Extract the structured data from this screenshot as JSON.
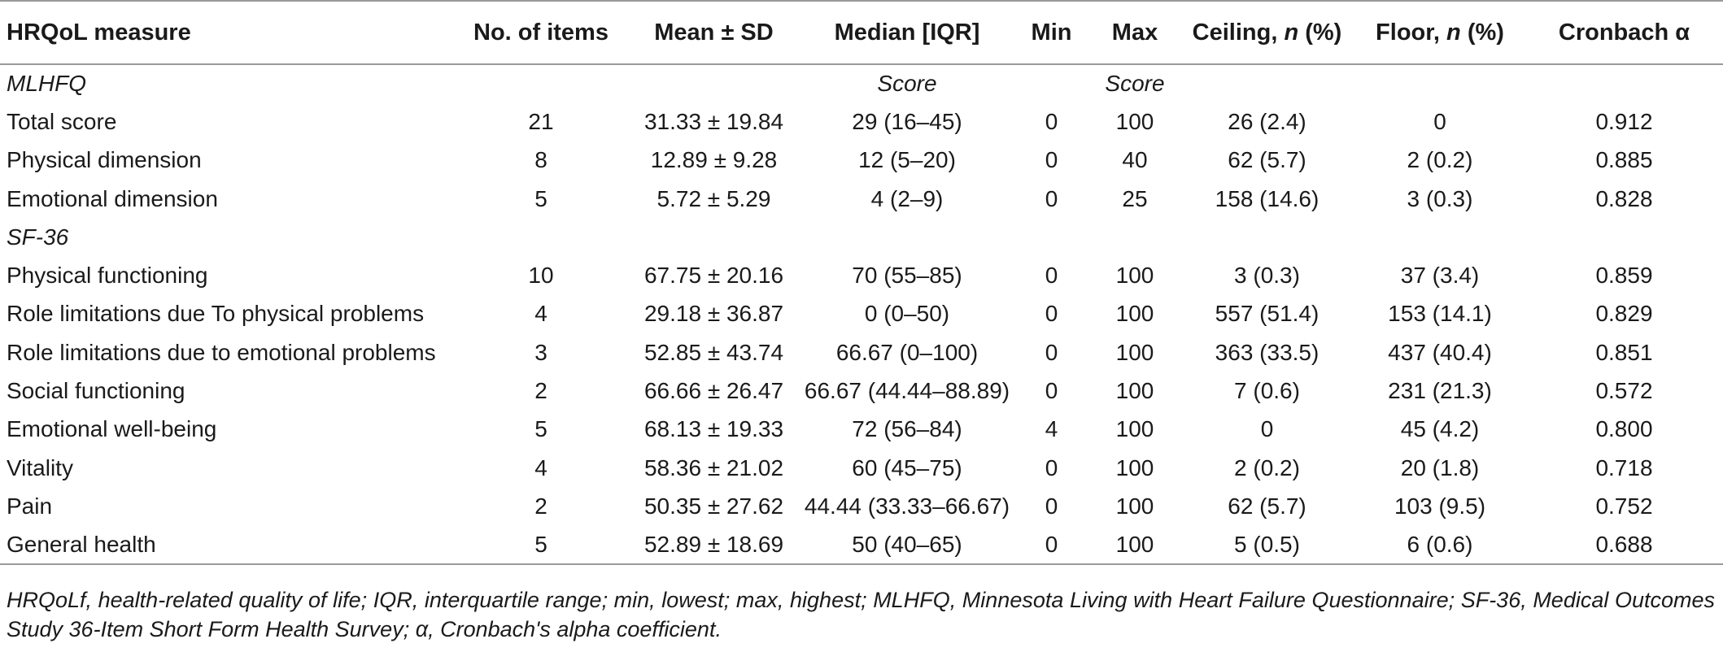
{
  "header": {
    "measure": "HRQoL measure",
    "items": "No. of items",
    "mean_sd": "Mean ± SD",
    "median": "Median [IQR]",
    "min": "Min",
    "max": "Max",
    "ceiling_a": "Ceiling, ",
    "ceiling_n": "n",
    "ceiling_b": " (%)",
    "floor_a": "Floor, ",
    "floor_n": "n",
    "floor_b": " (%)",
    "cronbach": "Cronbach α"
  },
  "sections": [
    {
      "name": "MLHFQ",
      "median_note": "Score",
      "max_note": "Score",
      "rows": [
        {
          "measure": "Total score",
          "items": "21",
          "mean_sd": "31.33 ± 19.84",
          "median": "29 (16–45)",
          "min": "0",
          "max": "100",
          "ceiling": "26 (2.4)",
          "floor": "0",
          "alpha": "0.912"
        },
        {
          "measure": "Physical dimension",
          "items": "8",
          "mean_sd": "12.89 ± 9.28",
          "median": "12 (5–20)",
          "min": "0",
          "max": "40",
          "ceiling": "62 (5.7)",
          "floor": "2 (0.2)",
          "alpha": "0.885"
        },
        {
          "measure": "Emotional dimension",
          "items": "5",
          "mean_sd": "5.72 ± 5.29",
          "median": "4 (2–9)",
          "min": "0",
          "max": "25",
          "ceiling": "158 (14.6)",
          "floor": "3 (0.3)",
          "alpha": "0.828"
        }
      ]
    },
    {
      "name": "SF-36",
      "median_note": "",
      "max_note": "",
      "rows": [
        {
          "measure": "Physical functioning",
          "items": "10",
          "mean_sd": "67.75 ± 20.16",
          "median": "70 (55–85)",
          "min": "0",
          "max": "100",
          "ceiling": "3 (0.3)",
          "floor": "37 (3.4)",
          "alpha": "0.859"
        },
        {
          "measure": "Role limitations due To physical problems",
          "items": "4",
          "mean_sd": "29.18 ± 36.87",
          "median": "0 (0–50)",
          "min": "0",
          "max": "100",
          "ceiling": "557 (51.4)",
          "floor": "153 (14.1)",
          "alpha": "0.829"
        },
        {
          "measure": "Role limitations due to emotional problems",
          "items": "3",
          "mean_sd": "52.85 ± 43.74",
          "median": "66.67 (0–100)",
          "min": "0",
          "max": "100",
          "ceiling": "363 (33.5)",
          "floor": "437 (40.4)",
          "alpha": "0.851"
        },
        {
          "measure": "Social functioning",
          "items": "2",
          "mean_sd": "66.66 ± 26.47",
          "median": "66.67 (44.44–88.89)",
          "min": "0",
          "max": "100",
          "ceiling": "7 (0.6)",
          "floor": "231 (21.3)",
          "alpha": "0.572"
        },
        {
          "measure": "Emotional well-being",
          "items": "5",
          "mean_sd": "68.13 ± 19.33",
          "median": "72 (56–84)",
          "min": "4",
          "max": "100",
          "ceiling": "0",
          "floor": "45 (4.2)",
          "alpha": "0.800"
        },
        {
          "measure": "Vitality",
          "items": "4",
          "mean_sd": "58.36 ± 21.02",
          "median": "60 (45–75)",
          "min": "0",
          "max": "100",
          "ceiling": "2 (0.2)",
          "floor": "20 (1.8)",
          "alpha": "0.718"
        },
        {
          "measure": "Pain",
          "items": "2",
          "mean_sd": "50.35 ± 27.62",
          "median": "44.44 (33.33–66.67)",
          "min": "0",
          "max": "100",
          "ceiling": "62 (5.7)",
          "floor": "103 (9.5)",
          "alpha": "0.752"
        },
        {
          "measure": "General health",
          "items": "5",
          "mean_sd": "52.89 ± 18.69",
          "median": "50 (40–65)",
          "min": "0",
          "max": "100",
          "ceiling": "5 (0.5)",
          "floor": "6 (0.6)",
          "alpha": "0.688"
        }
      ]
    }
  ],
  "footnote": "HRQoLf, health-related quality of life; IQR, interquartile range; min, lowest; max, highest; MLHFQ, Minnesota Living with Heart Failure Questionnaire; SF-36, Medical Outcomes Study 36-Item Short Form Health Survey; α, Cronbach's alpha coefficient."
}
